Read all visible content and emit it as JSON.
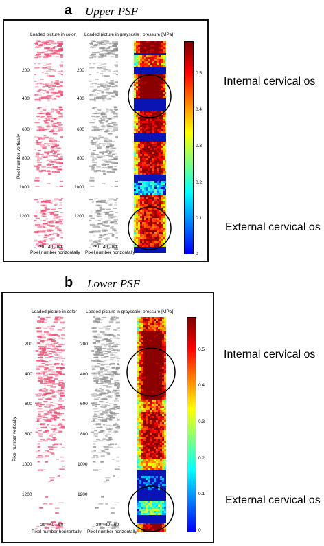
{
  "panels": [
    {
      "letter": "a",
      "name": "Upper PSF",
      "title_color": "Loaded picture in color",
      "title_gray": "Loaded picture in grayscale",
      "title_pressure": "pressure [MPa]",
      "yticks": [
        "200",
        "400",
        "600",
        "800",
        "1000",
        "1200"
      ],
      "xticks": [
        "20",
        "40",
        "60"
      ],
      "ylabel": "Pixel number vertically",
      "xlabel": "Pixel number horizontally",
      "cbar_ticks": [
        "0.5",
        "0.4",
        "0.3",
        "0.2",
        "0.1",
        "0"
      ],
      "internal_label": "Internal cervical os",
      "external_label": "External cervical os"
    },
    {
      "letter": "b",
      "name": "Lower PSF",
      "title_color": "Loaded picture in color",
      "title_gray": "Loaded picture in grayscale",
      "title_pressure": "pressure [MPa]",
      "yticks": [
        "200",
        "400",
        "600",
        "800",
        "1000",
        "1200"
      ],
      "xticks": [
        "20",
        "40",
        "60"
      ],
      "ylabel": "Pixel number vertically",
      "xlabel": "Pixel number horizontally",
      "cbar_ticks": [
        "0.5",
        "0.4",
        "0.3",
        "0.2",
        "0.1",
        "0"
      ],
      "internal_label": "Internal cervical os",
      "external_label": "External cervical os"
    }
  ],
  "colors": {
    "pink": "#e8466e",
    "gray": "#8c8c8c",
    "background_blue": "#0a14b4",
    "hot_red": "#8b0000"
  }
}
